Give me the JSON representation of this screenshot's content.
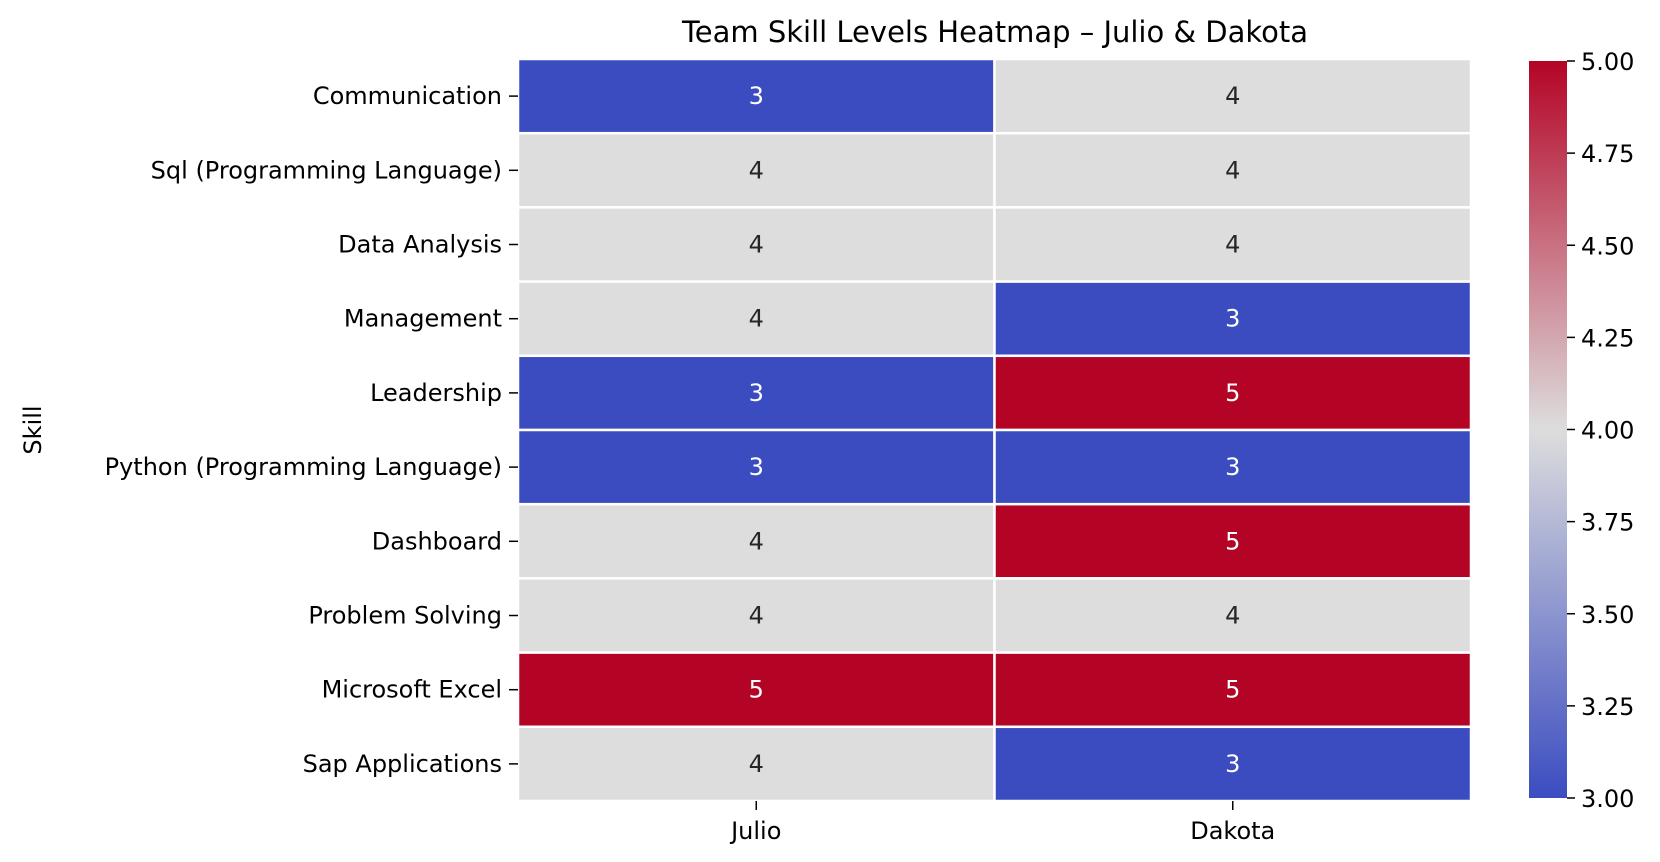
{
  "chart_data": {
    "type": "heatmap",
    "title": "Team Skill Levels Heatmap – Julio & Dakota",
    "xlabel": "",
    "ylabel": "Skill",
    "x_categories": [
      "Julio",
      "Dakota"
    ],
    "y_categories": [
      "Communication",
      "Sql (Programming Language)",
      "Data Analysis",
      "Management",
      "Leadership",
      "Python (Programming Language)",
      "Dashboard",
      "Problem Solving",
      "Microsoft Excel",
      "Sap Applications"
    ],
    "values": [
      [
        3,
        4
      ],
      [
        4,
        4
      ],
      [
        4,
        4
      ],
      [
        4,
        3
      ],
      [
        3,
        5
      ],
      [
        3,
        3
      ],
      [
        4,
        5
      ],
      [
        4,
        4
      ],
      [
        5,
        5
      ],
      [
        4,
        3
      ]
    ],
    "colormap": "coolwarm",
    "value_range": [
      3,
      5
    ],
    "colors": {
      "low": "#3b4cc0",
      "mid": "#dddddd",
      "high": "#b40426"
    },
    "colorbar_ticks": [
      "3.00",
      "3.25",
      "3.50",
      "3.75",
      "4.00",
      "4.25",
      "4.50",
      "4.75",
      "5.00"
    ],
    "annotate": true
  }
}
